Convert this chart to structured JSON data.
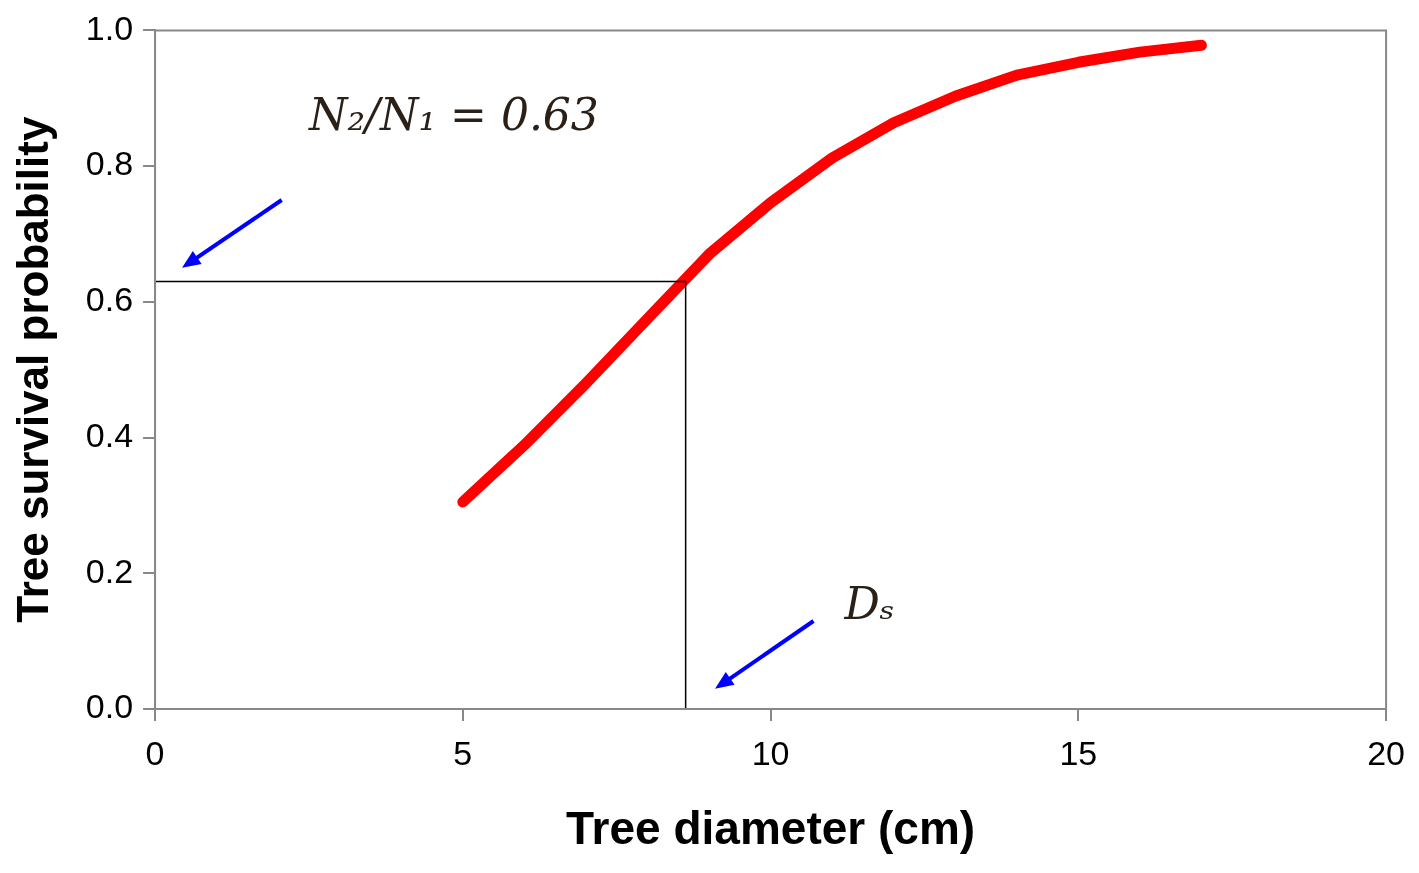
{
  "chart_data": {
    "type": "line",
    "xlabel": "Tree diameter (cm)",
    "ylabel": "Tree survival probability",
    "xlim": [
      0,
      20
    ],
    "xticks": [
      0,
      5,
      10,
      15,
      20
    ],
    "ylim": [
      0,
      1
    ],
    "yticks": [
      {
        "value": 0,
        "label": "0.0"
      },
      {
        "value": 0.2,
        "label": "0.2"
      },
      {
        "value": 0.4,
        "label": "0.4"
      },
      {
        "value": 0.6,
        "label": "0.6"
      },
      {
        "value": 0.8,
        "label": "0.8"
      },
      {
        "value": 1,
        "label": "1.0"
      }
    ],
    "grid": false,
    "legend": false,
    "marker": "none",
    "line_style": "solid",
    "series": [
      {
        "color": "#ff0000",
        "x": [
          5,
          6,
          7,
          8,
          9,
          10,
          11,
          12,
          13,
          14,
          15,
          16,
          17
        ],
        "values": [
          0.305,
          0.389,
          0.48,
          0.575,
          0.67,
          0.746,
          0.812,
          0.864,
          0.903,
          0.934,
          0.953,
          0.968,
          0.978
        ]
      },
      {
        "color": "#000000",
        "x": [
          0,
          8.62,
          8.62
        ],
        "values": [
          0.63,
          0.63,
          0
        ]
      }
    ],
    "annotations": [
      "N₂/N₁ = 0.63",
      "Dₛ"
    ]
  }
}
